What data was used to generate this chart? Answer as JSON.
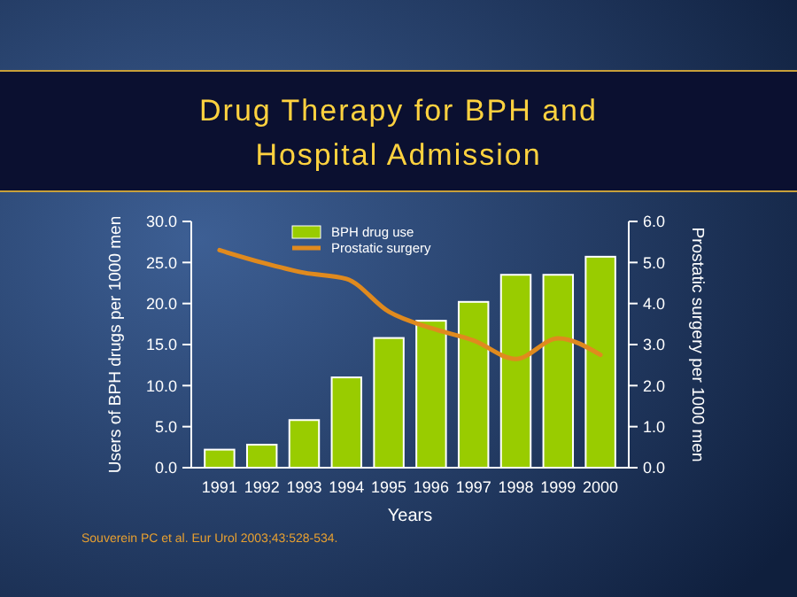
{
  "chart_data": {
    "type": "bar",
    "title": "Drug Therapy for BPH and\nHospital Admission",
    "xlabel": "Years",
    "ylabel": "Users of BPH drugs per 1000 men",
    "y2label": "Prostatic surgery per 1000 men",
    "categories": [
      "1991",
      "1992",
      "1993",
      "1994",
      "1995",
      "1996",
      "1997",
      "1998",
      "1999",
      "2000"
    ],
    "series": [
      {
        "name": "BPH drug use",
        "color": "#99cc00",
        "values": [
          2.2,
          2.8,
          5.8,
          11.0,
          15.8,
          17.9,
          20.2,
          23.5,
          23.5,
          25.7
        ]
      },
      {
        "name": "Prostatic surgery",
        "type": "line",
        "axis": "y2",
        "color": "#e08a1e",
        "values": [
          5.3,
          5.0,
          4.75,
          4.6,
          3.8,
          3.4,
          3.1,
          2.65,
          3.15,
          2.75
        ]
      }
    ],
    "ylim": [
      0,
      30
    ],
    "yticks": [
      {
        "value": 0,
        "label": "0.0"
      },
      {
        "value": 5,
        "label": "5.0"
      },
      {
        "value": 10,
        "label": "10.0"
      },
      {
        "value": 15,
        "label": "15.0"
      },
      {
        "value": 20,
        "label": "20.0"
      },
      {
        "value": 25,
        "label": "25.0"
      },
      {
        "value": 30,
        "label": "30.0"
      }
    ],
    "y2lim": [
      0,
      6
    ],
    "y2ticks": [
      {
        "value": 0,
        "label": "0.0"
      },
      {
        "value": 1,
        "label": "1.0"
      },
      {
        "value": 2,
        "label": "2.0"
      },
      {
        "value": 3,
        "label": "3.0"
      },
      {
        "value": 4,
        "label": "4.0"
      },
      {
        "value": 5,
        "label": "5.0"
      },
      {
        "value": 6,
        "label": "6.0"
      }
    ],
    "legend": "top",
    "grid": false,
    "annotations": [
      "Souverein PC et al. Eur Urol 2003;43:528-534."
    ]
  }
}
